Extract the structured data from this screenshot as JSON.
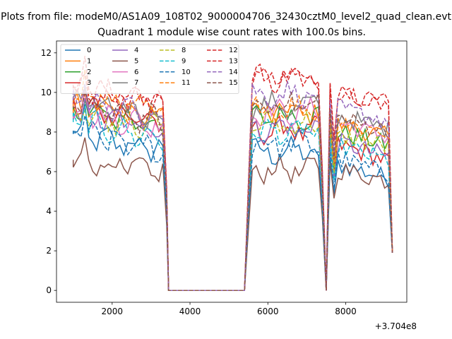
{
  "figure": {
    "suptitle": "Plots from file: modeM0/AS1A09_108T02_9000004706_32430cztM0_level2_quad_clean.evt",
    "title": "Quadrant 1 module wise count rates with 100.0s bins.",
    "x_offset_label": "+3.704e8"
  },
  "chart_data": {
    "type": "line",
    "title": "Quadrant 1 module wise count rates with 100.0s bins.",
    "xlabel": "",
    "ylabel": "",
    "x_offset": 370400000,
    "xlim": [
      570,
      9570
    ],
    "ylim": [
      -0.6,
      12.6
    ],
    "x_ticks": [
      2000,
      4000,
      6000,
      8000
    ],
    "y_ticks": [
      0,
      2,
      4,
      6,
      8,
      10,
      12
    ],
    "x_tick_labels": [
      "2000",
      "4000",
      "6000",
      "8000"
    ],
    "y_tick_labels": [
      "0",
      "2",
      "4",
      "6",
      "8",
      "10",
      "12"
    ],
    "grid": false,
    "legend_placement": "upper-left",
    "legend_columns": 4,
    "anchors": {
      "seg1_x": [
        1000,
        1100,
        1200,
        1300,
        1400,
        1500,
        1600,
        1700,
        1800,
        1900,
        2000,
        2100,
        2200,
        2300,
        2400,
        2500,
        2600,
        2700,
        2800,
        2900,
        3000,
        3100,
        3200,
        3300,
        3400
      ],
      "seg2_x": [
        5500,
        5600,
        5700,
        5800,
        5900,
        6000,
        6100,
        6200,
        6300,
        6400,
        6500,
        6600,
        6700,
        6800,
        6900,
        7000,
        7100,
        7200,
        7300
      ],
      "seg3_x": [
        7600,
        7700,
        7800,
        7900,
        8000,
        8100,
        8200,
        8300,
        8400,
        8500,
        8600,
        8700,
        8800,
        8900,
        9000,
        9100,
        9200
      ]
    },
    "series": [
      {
        "name": "0",
        "color": "#1f77b4",
        "dash": "solid",
        "base": [
          7.9,
          7.0,
          6.5
        ],
        "slope": -0.45
      },
      {
        "name": "1",
        "color": "#ff7f0e",
        "dash": "solid",
        "base": [
          9.5,
          9.0,
          8.5
        ],
        "slope": -0.4
      },
      {
        "name": "2",
        "color": "#2ca02c",
        "dash": "solid",
        "base": [
          9.1,
          8.8,
          8.1
        ],
        "slope": -0.4
      },
      {
        "name": "3",
        "color": "#d62728",
        "dash": "solid",
        "base": [
          9.4,
          8.1,
          7.5
        ],
        "slope": -0.5
      },
      {
        "name": "4",
        "color": "#9467bd",
        "dash": "solid",
        "base": [
          9.0,
          8.2,
          7.6
        ],
        "slope": -0.45
      },
      {
        "name": "5",
        "color": "#8c564b",
        "dash": "solid",
        "base": [
          6.6,
          6.1,
          6.2
        ],
        "slope": -0.35
      },
      {
        "name": "6",
        "color": "#e377c2",
        "dash": "solid",
        "base": [
          9.1,
          9.0,
          8.6
        ],
        "slope": -0.45
      },
      {
        "name": "7",
        "color": "#7f7f7f",
        "dash": "solid",
        "base": [
          9.5,
          9.3,
          8.9
        ],
        "slope": -0.4
      },
      {
        "name": "8",
        "color": "#bcbd22",
        "dash": "dashed",
        "base": [
          8.9,
          8.4,
          7.9
        ],
        "slope": -0.35
      },
      {
        "name": "9",
        "color": "#17becf",
        "dash": "dashed",
        "base": [
          8.5,
          8.0,
          7.4
        ],
        "slope": -0.45
      },
      {
        "name": "10",
        "color": "#1f77b4",
        "dash": "dashed",
        "base": [
          8.0,
          7.4,
          6.8
        ],
        "slope": -0.5
      },
      {
        "name": "11",
        "color": "#ff7f0e",
        "dash": "dashed",
        "base": [
          9.7,
          9.2,
          8.6
        ],
        "slope": -0.35
      },
      {
        "name": "12",
        "color": "#d62728",
        "dash": "dashed",
        "base": [
          10.2,
          10.7,
          10.2
        ],
        "slope": -0.35
      },
      {
        "name": "13",
        "color": "#d62728",
        "dash": "dashed",
        "base": [
          10.3,
          10.8,
          10.0
        ],
        "slope": -0.35
      },
      {
        "name": "14",
        "color": "#9467bd",
        "dash": "dashed",
        "base": [
          9.6,
          9.9,
          9.3
        ],
        "slope": -0.4
      },
      {
        "name": "15",
        "color": "#8c564b",
        "dash": "dashed",
        "base": [
          9.3,
          9.4,
          8.8
        ],
        "slope": -0.4
      }
    ]
  }
}
